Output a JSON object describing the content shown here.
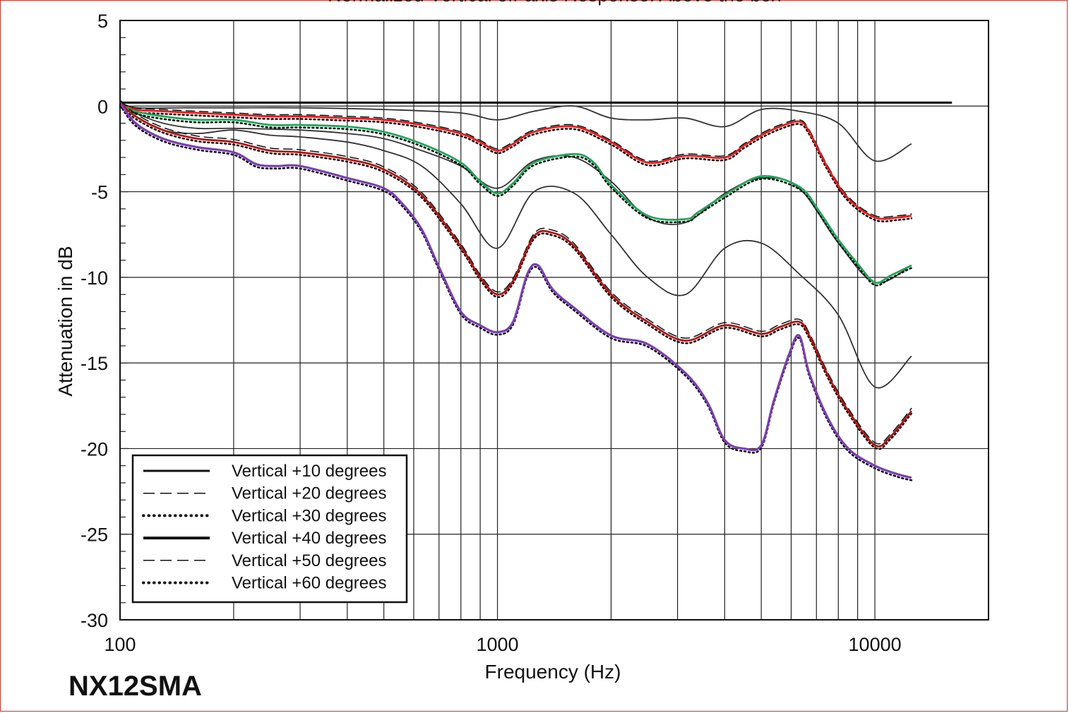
{
  "page": {
    "model_label": "NX12SMA"
  },
  "chart_data": {
    "type": "line",
    "title": "Normalized Vertical off-axis Response: Above the box",
    "xlabel": "Frequency (Hz)",
    "ylabel": "Attenuation in dB",
    "x_scale": "log",
    "xlim": [
      100,
      20000
    ],
    "ylim": [
      -30,
      5
    ],
    "x_ticks": [
      100,
      1000,
      10000
    ],
    "x_tick_labels": [
      "100",
      "1000",
      "10000"
    ],
    "y_ticks": [
      5,
      0,
      -5,
      -10,
      -15,
      -20,
      -25,
      -30
    ],
    "y_tick_labels": [
      "5",
      "0",
      "-5",
      "-10",
      "-15",
      "-20",
      "-25",
      "-30"
    ],
    "grid": true,
    "legend": {
      "position": "bottom-left",
      "entries": [
        {
          "label": "Vertical +10 degrees",
          "style": "solid",
          "weight": 3
        },
        {
          "label": "Vertical +20 degrees",
          "style": "dashed",
          "weight": 1.5
        },
        {
          "label": "Vertical +30 degrees",
          "style": "dotted",
          "weight": 4
        },
        {
          "label": "Vertical +40 degrees",
          "style": "solid",
          "weight": 4
        },
        {
          "label": "Vertical +50 degrees",
          "style": "dashed",
          "weight": 1.5
        },
        {
          "label": "Vertical +60 degrees",
          "style": "dotted",
          "weight": 4
        }
      ]
    },
    "reference_line": {
      "x": [
        100,
        16000
      ],
      "y": [
        0.2,
        0.2
      ],
      "color": "#000000"
    },
    "series": [
      {
        "color": "#333333",
        "width": 1.8,
        "points": [
          [
            100,
            0.2
          ],
          [
            110,
            -0.1
          ],
          [
            150,
            -0.1
          ],
          [
            200,
            -0.1
          ],
          [
            300,
            -0.1
          ],
          [
            500,
            -0.2
          ],
          [
            800,
            -0.4
          ],
          [
            1000,
            -0.8
          ],
          [
            1250,
            -0.3
          ],
          [
            1600,
            0
          ],
          [
            2000,
            -0.7
          ],
          [
            2500,
            -0.8
          ],
          [
            3150,
            -0.7
          ],
          [
            4000,
            -1.2
          ],
          [
            5000,
            -0.2
          ],
          [
            6300,
            -0.3
          ],
          [
            8000,
            -1
          ],
          [
            10000,
            -3.2
          ],
          [
            12500,
            -2.2
          ]
        ]
      },
      {
        "color": "#333333",
        "width": 1.8,
        "points": [
          [
            100,
            0.2
          ],
          [
            110,
            -0.4
          ],
          [
            130,
            -1
          ],
          [
            160,
            -1.3
          ],
          [
            200,
            -1.3
          ],
          [
            300,
            -1.4
          ],
          [
            400,
            -1.6
          ],
          [
            500,
            -1.9
          ],
          [
            630,
            -2.6
          ],
          [
            800,
            -3.5
          ],
          [
            1000,
            -4.8
          ],
          [
            1250,
            -3.2
          ],
          [
            1600,
            -3
          ],
          [
            2000,
            -4.4
          ],
          [
            2500,
            -6.5
          ],
          [
            3150,
            -6.8
          ],
          [
            4000,
            -5.1
          ],
          [
            5000,
            -4.2
          ],
          [
            6300,
            -4.8
          ],
          [
            8000,
            -8
          ],
          [
            10000,
            -10.3
          ],
          [
            12500,
            -9.3
          ]
        ]
      },
      {
        "color": "#333333",
        "width": 1.8,
        "points": [
          [
            100,
            0.2
          ],
          [
            110,
            -0.6
          ],
          [
            130,
            -1.4
          ],
          [
            160,
            -1.6
          ],
          [
            200,
            -1.4
          ],
          [
            250,
            -1.7
          ],
          [
            300,
            -1.8
          ],
          [
            400,
            -2.1
          ],
          [
            500,
            -2.6
          ],
          [
            630,
            -3.5
          ],
          [
            800,
            -5.7
          ],
          [
            1000,
            -8.3
          ],
          [
            1250,
            -5
          ],
          [
            1600,
            -5.1
          ],
          [
            2000,
            -7.5
          ],
          [
            2500,
            -10
          ],
          [
            3150,
            -11
          ],
          [
            4000,
            -8.3
          ],
          [
            5000,
            -8
          ],
          [
            6300,
            -9.8
          ],
          [
            8000,
            -12.2
          ],
          [
            10000,
            -16.4
          ],
          [
            12500,
            -14.6
          ]
        ]
      },
      {
        "color": "#e41a1a",
        "width": 2.8,
        "points": [
          [
            100,
            0.1
          ],
          [
            110,
            -0.2
          ],
          [
            130,
            -0.3
          ],
          [
            160,
            -0.4
          ],
          [
            200,
            -0.5
          ],
          [
            250,
            -0.6
          ],
          [
            300,
            -0.6
          ],
          [
            400,
            -0.7
          ],
          [
            500,
            -0.8
          ],
          [
            630,
            -1.1
          ],
          [
            800,
            -1.6
          ],
          [
            900,
            -2.1
          ],
          [
            1000,
            -2.6
          ],
          [
            1100,
            -2.2
          ],
          [
            1250,
            -1.5
          ],
          [
            1600,
            -1.2
          ],
          [
            2000,
            -2.1
          ],
          [
            2500,
            -3.3
          ],
          [
            3150,
            -2.9
          ],
          [
            4000,
            -3
          ],
          [
            4500,
            -2.3
          ],
          [
            5000,
            -1.7
          ],
          [
            5600,
            -1.2
          ],
          [
            6300,
            -0.9
          ],
          [
            6700,
            -1.5
          ],
          [
            7500,
            -3.6
          ],
          [
            8500,
            -5.4
          ],
          [
            10000,
            -6.5
          ],
          [
            11500,
            -6.5
          ],
          [
            12500,
            -6.4
          ]
        ],
        "trace": [
          {
            "style": "dashed",
            "dy": 0.1
          },
          {
            "style": "dotted",
            "dy": -0.15
          }
        ]
      },
      {
        "color": "#1fa65a",
        "width": 2.8,
        "points": [
          [
            100,
            0.1
          ],
          [
            110,
            -0.3
          ],
          [
            130,
            -0.6
          ],
          [
            160,
            -0.8
          ],
          [
            200,
            -0.8
          ],
          [
            250,
            -1.1
          ],
          [
            300,
            -1.1
          ],
          [
            400,
            -1.2
          ],
          [
            500,
            -1.5
          ],
          [
            630,
            -2.2
          ],
          [
            800,
            -3.3
          ],
          [
            900,
            -4.4
          ],
          [
            1000,
            -5.1
          ],
          [
            1100,
            -4.5
          ],
          [
            1250,
            -3.3
          ],
          [
            1600,
            -2.8
          ],
          [
            1800,
            -3.3
          ],
          [
            2000,
            -4.6
          ],
          [
            2500,
            -6.4
          ],
          [
            3150,
            -6.6
          ],
          [
            3400,
            -6.2
          ],
          [
            4000,
            -5.2
          ],
          [
            5000,
            -4.1
          ],
          [
            6300,
            -4.7
          ],
          [
            7100,
            -6.1
          ],
          [
            8000,
            -7.8
          ],
          [
            9000,
            -9.2
          ],
          [
            10000,
            -10.3
          ],
          [
            11000,
            -9.9
          ],
          [
            12500,
            -9.3
          ]
        ],
        "trace": [
          {
            "style": "dotted",
            "dy": -0.15
          }
        ]
      },
      {
        "color": "#b01414",
        "width": 2.8,
        "points": [
          [
            100,
            0.2
          ],
          [
            110,
            -0.6
          ],
          [
            130,
            -1.4
          ],
          [
            160,
            -1.9
          ],
          [
            200,
            -2.1
          ],
          [
            250,
            -2.6
          ],
          [
            300,
            -2.7
          ],
          [
            400,
            -3.1
          ],
          [
            500,
            -3.7
          ],
          [
            630,
            -5.2
          ],
          [
            800,
            -8.2
          ],
          [
            900,
            -10
          ],
          [
            1000,
            -11
          ],
          [
            1100,
            -10.2
          ],
          [
            1250,
            -7.6
          ],
          [
            1400,
            -7.4
          ],
          [
            1600,
            -8.2
          ],
          [
            2000,
            -11
          ],
          [
            2500,
            -12.6
          ],
          [
            3150,
            -13.7
          ],
          [
            4000,
            -12.8
          ],
          [
            5000,
            -13.3
          ],
          [
            5600,
            -12.9
          ],
          [
            6300,
            -12.6
          ],
          [
            6700,
            -13.4
          ],
          [
            7500,
            -15.7
          ],
          [
            8500,
            -17.8
          ],
          [
            10000,
            -19.8
          ],
          [
            11000,
            -19.3
          ],
          [
            12500,
            -17.8
          ]
        ],
        "trace": [
          {
            "style": "dashed",
            "dy": 0.15
          },
          {
            "style": "dotted",
            "dy": -0.15
          }
        ]
      },
      {
        "color": "#7b3fb0",
        "width": 3.2,
        "points": [
          [
            100,
            0.2
          ],
          [
            110,
            -1
          ],
          [
            130,
            -1.9
          ],
          [
            160,
            -2.4
          ],
          [
            200,
            -2.7
          ],
          [
            230,
            -3.4
          ],
          [
            260,
            -3.5
          ],
          [
            300,
            -3.5
          ],
          [
            400,
            -4.2
          ],
          [
            500,
            -4.8
          ],
          [
            560,
            -5.7
          ],
          [
            630,
            -7.2
          ],
          [
            700,
            -9.4
          ],
          [
            800,
            -12
          ],
          [
            900,
            -12.8
          ],
          [
            1000,
            -13.2
          ],
          [
            1100,
            -12.6
          ],
          [
            1200,
            -9.8
          ],
          [
            1280,
            -9.3
          ],
          [
            1400,
            -10.7
          ],
          [
            1600,
            -11.8
          ],
          [
            2000,
            -13.4
          ],
          [
            2500,
            -13.9
          ],
          [
            3150,
            -15.6
          ],
          [
            3600,
            -17.3
          ],
          [
            4000,
            -19.5
          ],
          [
            4500,
            -20
          ],
          [
            5000,
            -19.8
          ],
          [
            5400,
            -17.2
          ],
          [
            5900,
            -14.6
          ],
          [
            6300,
            -13.4
          ],
          [
            6700,
            -15.6
          ],
          [
            7500,
            -18.2
          ],
          [
            8500,
            -20
          ],
          [
            10000,
            -21
          ],
          [
            11500,
            -21.5
          ],
          [
            12500,
            -21.7
          ]
        ],
        "trace": [
          {
            "style": "dotted",
            "dy": -0.15
          }
        ]
      }
    ]
  }
}
